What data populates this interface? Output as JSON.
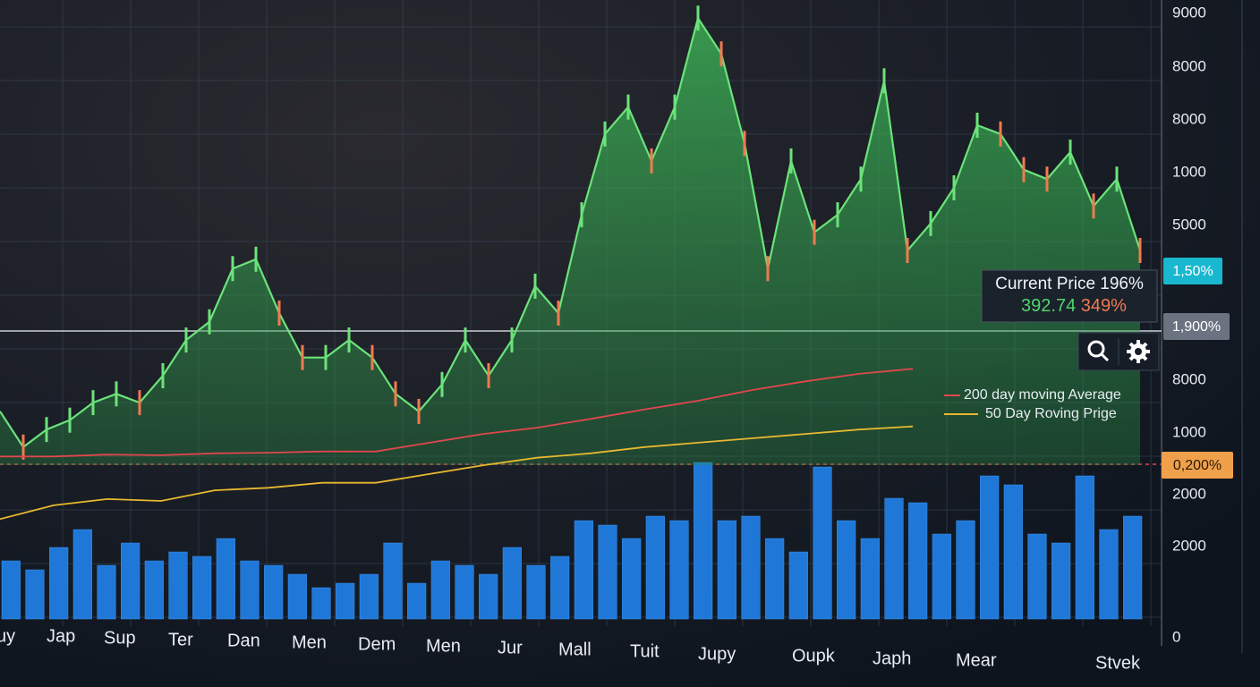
{
  "axis": {
    "y_labels": [
      "9000",
      "8000",
      "8000",
      "1000",
      "5000",
      "8000",
      "1000",
      "2000",
      "2000",
      "0"
    ],
    "x_labels": [
      "uy",
      "Jap",
      "Sup",
      "Ter",
      "Dan",
      "Men",
      "Dem",
      "Men",
      "Jur",
      "Mall",
      "Tuit",
      "Jupy",
      "Oupk",
      "Japh",
      "Mear",
      "Stvek"
    ]
  },
  "badges": [
    "1,50%",
    "1,900%",
    "0,200%"
  ],
  "current_price": {
    "label": "Current Price 196%",
    "price": "392.74",
    "change": "349%"
  },
  "legend": [
    {
      "name": "200 day moving Average",
      "color": "#e0474c"
    },
    {
      "name": "50 Day Roving Prige",
      "color": "#e8b830"
    }
  ],
  "price": [
    34.3,
    28.6,
    31.4,
    32.9,
    35.7,
    37.1,
    35.7,
    40,
    45.7,
    48.6,
    57.1,
    58.6,
    50,
    42.9,
    42.9,
    45.7,
    42.9,
    37.1,
    34.3,
    38.6,
    45.7,
    40,
    45.7,
    54.3,
    50,
    65.7,
    78.6,
    82.9,
    74.3,
    82.9,
    97.1,
    91.4,
    77.1,
    57.1,
    74.3,
    62.9,
    65.7,
    71.4,
    87.1,
    60,
    64.3,
    70,
    80,
    78.6,
    72.9,
    71.4,
    75.7,
    67.1,
    71.4,
    60
  ],
  "ma200": [
    27.1,
    27.1,
    27.4,
    27.3,
    27.6,
    27.7,
    27.9,
    27.9,
    29.3,
    30.7,
    31.7,
    33.1,
    34.6,
    36,
    37.7,
    39.1,
    40.3,
    41.1
  ],
  "ma50": [
    17.1,
    19.3,
    20.3,
    20,
    21.7,
    22.1,
    22.9,
    22.9,
    24.3,
    25.7,
    26.9,
    27.6,
    28.6,
    29.3,
    30,
    30.7,
    31.4,
    31.9
  ],
  "volume": [
    65,
    55,
    80,
    100,
    60,
    85,
    65,
    75,
    70,
    90,
    65,
    60,
    50,
    35,
    40,
    50,
    85,
    40,
    65,
    60,
    50,
    80,
    60,
    70,
    110,
    105,
    90,
    115,
    110,
    175,
    110,
    115,
    90,
    75,
    170,
    110,
    90,
    135,
    130,
    95,
    110,
    160,
    150,
    95,
    85,
    160,
    100,
    115
  ]
}
